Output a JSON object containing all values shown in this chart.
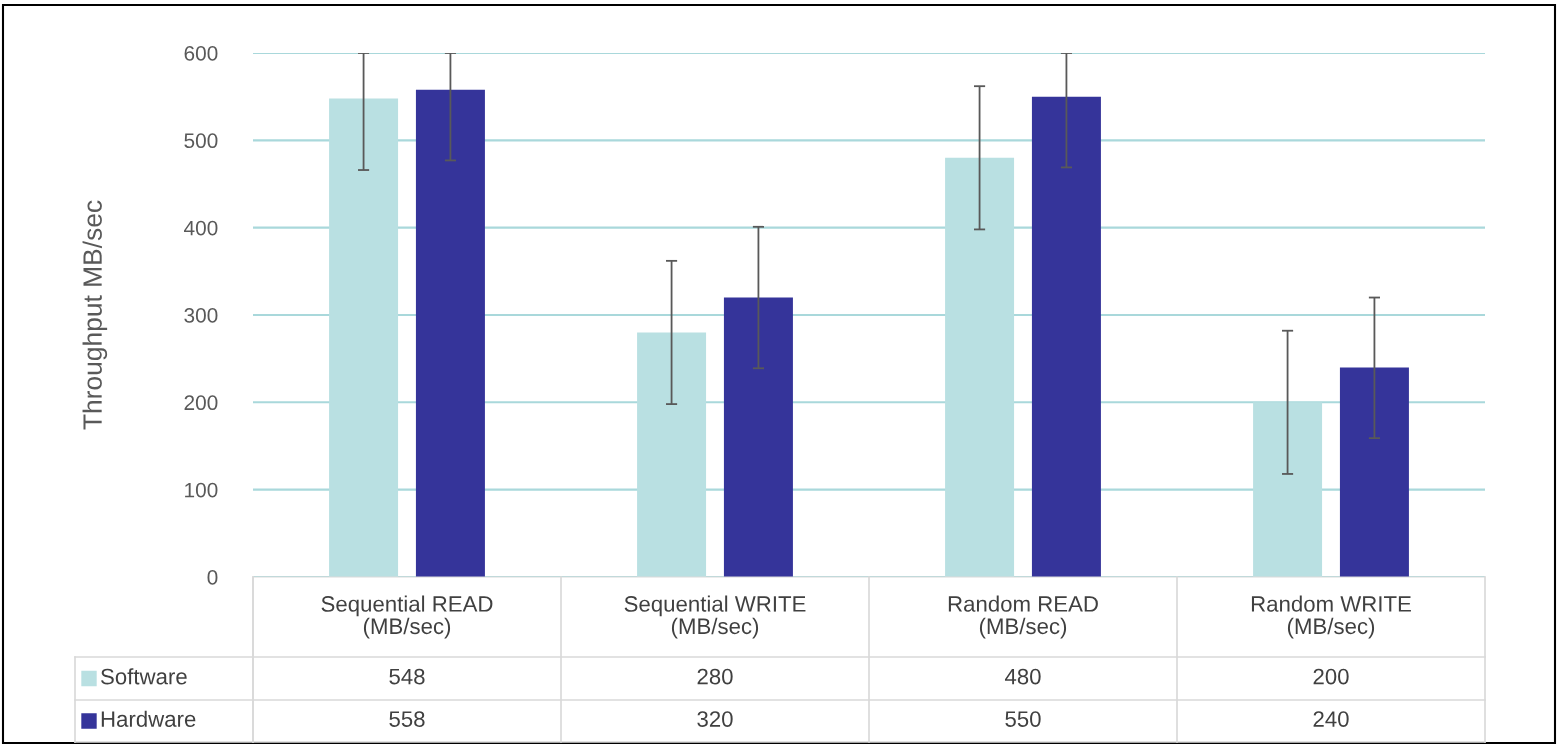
{
  "chart_data": {
    "type": "bar",
    "ylabel": "Throughput MB/sec",
    "categories": [
      "Sequential READ\n(MB/sec)",
      "Sequential WRITE\n(MB/sec)",
      "Random READ\n(MB/sec)",
      "Random WRITE\n(MB/sec)"
    ],
    "series": [
      {
        "name": "Software",
        "color": "#b9e0e2",
        "values": [
          548,
          280,
          480,
          200
        ],
        "errors": [
          [
            466,
            600
          ],
          [
            198,
            362
          ],
          [
            398,
            562
          ],
          [
            118,
            282
          ]
        ]
      },
      {
        "name": "Hardware",
        "color": "#35349a",
        "values": [
          558,
          320,
          550,
          240
        ],
        "errors": [
          [
            477,
            600
          ],
          [
            239,
            401
          ],
          [
            469,
            600
          ],
          [
            159,
            320
          ]
        ]
      }
    ],
    "ylim": [
      0,
      600
    ],
    "yticks": [
      0,
      100,
      200,
      300,
      400,
      500,
      600
    ],
    "grid": "y",
    "data_labels": true,
    "legend": "bottom left"
  }
}
